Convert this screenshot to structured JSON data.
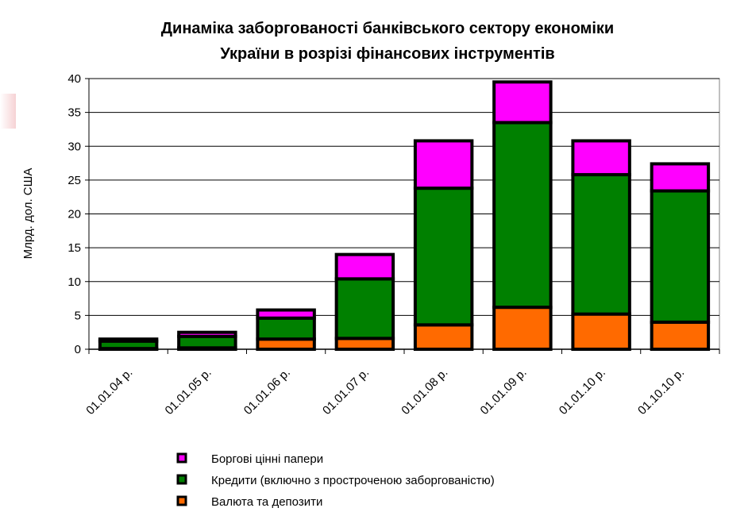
{
  "chart_data": {
    "type": "bar",
    "stacked": true,
    "title": [
      "Динаміка заборгованості банківського сектору економіки",
      "України в розрізі фінансових інструментів"
    ],
    "ylabel": "Млрд. дол. США",
    "ylim": [
      0,
      40
    ],
    "yticks": [
      0,
      5,
      10,
      15,
      20,
      25,
      30,
      35,
      40
    ],
    "grid": true,
    "legend_position": "bottom-left",
    "categories": [
      "01.01.04 р.",
      "01.01.05 р.",
      "01.01.06 р.",
      "01.01.07 р.",
      "01.01.08 р.",
      "01.01.09 р.",
      "01.01.10 р.",
      "01.10.10 р."
    ],
    "series": [
      {
        "name": "Валюта та депозити",
        "color": "#ff6a00",
        "values": [
          0.1,
          0.2,
          1.5,
          1.6,
          3.6,
          6.2,
          5.2,
          4.0
        ]
      },
      {
        "name": "Кредити (включно з простроченою заборгованістю)",
        "color": "#008000",
        "values": [
          1.1,
          1.7,
          3.1,
          8.8,
          20.2,
          27.3,
          20.6,
          19.4
        ]
      },
      {
        "name": "Боргові цінні папери",
        "color": "#ff00ff",
        "values": [
          0.3,
          0.6,
          1.2,
          3.6,
          7.0,
          6.0,
          5.0,
          4.0
        ]
      }
    ],
    "legend_order": [
      "Боргові цінні папери",
      "Кредити (включно з простроченою заборгованістю)",
      "Валюта та депозити"
    ]
  }
}
